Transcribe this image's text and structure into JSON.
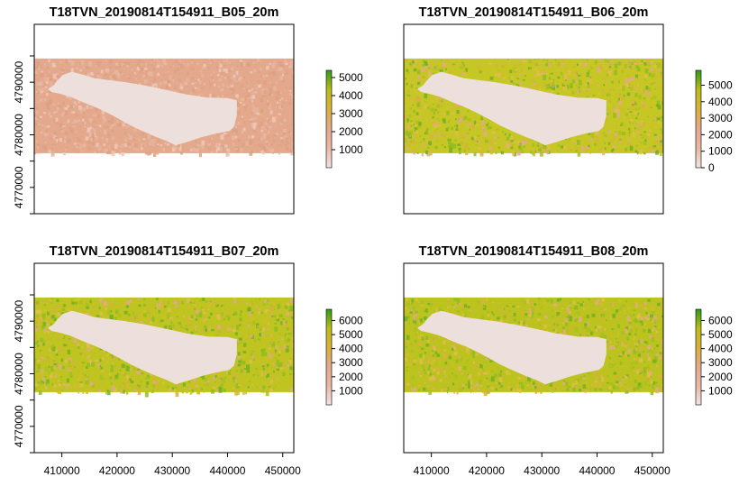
{
  "chart_data": [
    {
      "type": "heatmap",
      "title": "T18TVN_20190814T154911_B05_20m",
      "xlim": [
        405000,
        452000
      ],
      "ylim": [
        4765000,
        4801000
      ],
      "xticks": [],
      "yticks": [
        "4770000",
        "4780000",
        "4790000"
      ],
      "raster_extent": {
        "x": [
          405000,
          452000
        ],
        "y": [
          4776500,
          4794500
        ]
      },
      "legend": {
        "ticks": [
          "1000",
          "2000",
          "3000",
          "4000",
          "5000"
        ],
        "range": [
          0,
          5400
        ]
      },
      "colors": [
        "#f1e4e2",
        "#e8b9a4",
        "#e4a98d",
        "#d8b13c",
        "#bcbc18",
        "#2f9a1e"
      ],
      "raster_mean_color": "#e4a98d",
      "lake_color": "#ede0dc",
      "xlabel": "",
      "ylabel": "",
      "grid": false,
      "legend_position": "right"
    },
    {
      "type": "heatmap",
      "title": "T18TVN_20190814T154911_B06_20m",
      "xlim": [
        405000,
        452000
      ],
      "ylim": [
        4765000,
        4801000
      ],
      "xticks": [],
      "yticks": [],
      "raster_extent": {
        "x": [
          405000,
          452000
        ],
        "y": [
          4776500,
          4794500
        ]
      },
      "legend": {
        "ticks": [
          "0",
          "1000",
          "2000",
          "3000",
          "4000",
          "5000"
        ],
        "range": [
          0,
          5900
        ]
      },
      "colors": [
        "#f1e4e2",
        "#e8b9a4",
        "#e4a98d",
        "#d8b13c",
        "#bcbc18",
        "#2f9a1e"
      ],
      "raster_mean_color": "#c6c624",
      "lake_color": "#ede0dc",
      "xlabel": "",
      "ylabel": "",
      "grid": false,
      "legend_position": "right"
    },
    {
      "type": "heatmap",
      "title": "T18TVN_20190814T154911_B07_20m",
      "xlim": [
        405000,
        452000
      ],
      "ylim": [
        4765000,
        4801000
      ],
      "xticks": [],
      "yticks": [
        "4770000",
        "4780000",
        "4790000"
      ],
      "raster_extent": {
        "x": [
          405000,
          452000
        ],
        "y": [
          4776500,
          4794500
        ]
      },
      "legend": {
        "ticks": [
          "1000",
          "2000",
          "3000",
          "4000",
          "5000",
          "6000"
        ],
        "range": [
          0,
          6800
        ]
      },
      "colors": [
        "#f1e4e2",
        "#e8b9a4",
        "#e4a98d",
        "#d8b13c",
        "#bcbc18",
        "#2f9a1e"
      ],
      "raster_mean_color": "#bfc421",
      "lake_color": "#ede0dc",
      "xlabel": "",
      "ylabel": "",
      "grid": false,
      "legend_position": "right"
    },
    {
      "type": "heatmap",
      "title": "T18TVN_20190814T154911_B08_20m",
      "xlim": [
        405000,
        452000
      ],
      "ylim": [
        4765000,
        4801000
      ],
      "xticks": [],
      "yticks": [],
      "raster_extent": {
        "x": [
          405000,
          452000
        ],
        "y": [
          4776500,
          4794500
        ]
      },
      "legend": {
        "ticks": [
          "1000",
          "2000",
          "3000",
          "4000",
          "5000",
          "6000"
        ],
        "range": [
          0,
          6800
        ]
      },
      "colors": [
        "#f1e4e2",
        "#e8b9a4",
        "#e4a98d",
        "#d8b13c",
        "#bcbc18",
        "#2f9a1e"
      ],
      "raster_mean_color": "#bcc31f",
      "lake_color": "#ede0dc",
      "xlabel": "",
      "ylabel": "",
      "grid": false,
      "legend_position": "right"
    }
  ],
  "shared_x_axis": {
    "ticks": [
      "410000",
      "420000",
      "430000",
      "440000",
      "450000"
    ]
  }
}
